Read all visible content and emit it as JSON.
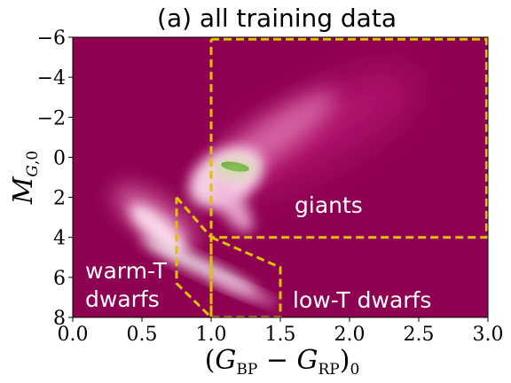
{
  "chart_data": {
    "type": "heatmap",
    "title": "(a) all training data",
    "xlabel": "(G_BP − G_RP)_0",
    "ylabel": "M_G,0",
    "xlim": [
      0.0,
      3.0
    ],
    "ylim": [
      8,
      -6
    ],
    "y_inverted": true,
    "x_ticks": [
      "0.0",
      "0.5",
      "1.0",
      "1.5",
      "2.0",
      "2.5",
      "3.0"
    ],
    "y_ticks": [
      "−6",
      "−4",
      "−2",
      "0",
      "2",
      "4",
      "6",
      "8"
    ],
    "x_tick_values": [
      0.0,
      0.5,
      1.0,
      1.5,
      2.0,
      2.5,
      3.0
    ],
    "y_tick_values": [
      -6,
      -4,
      -2,
      0,
      2,
      4,
      6,
      8
    ],
    "colormap": {
      "low": "#8e0152",
      "mid": "#f7f7f7",
      "high": "#4d9221"
    },
    "regions": [
      {
        "label": "giants",
        "polygon": [
          [
            1.0,
            -5.9
          ],
          [
            2.99,
            -5.9
          ],
          [
            2.99,
            4.0
          ],
          [
            1.0,
            4.0
          ],
          [
            1.0,
            -5.9
          ]
        ]
      },
      {
        "label": "low-T dwarfs",
        "polygon": [
          [
            1.0,
            4.0
          ],
          [
            1.5,
            5.5
          ],
          [
            1.5,
            8.0
          ],
          [
            1.0,
            8.0
          ],
          [
            1.0,
            4.0
          ]
        ]
      },
      {
        "label": "warm-T dwarfs",
        "polygon": [
          [
            0.75,
            2.0
          ],
          [
            1.0,
            4.0
          ],
          [
            1.0,
            8.0
          ],
          [
            0.75,
            6.3
          ],
          [
            0.75,
            2.0
          ]
        ]
      }
    ],
    "region_labels": {
      "giants": "giants",
      "low_t_dwarfs": "low-T dwarfs",
      "warm_t_line1": "warm-T",
      "warm_t_line2": "dwarfs"
    },
    "box_color": "#e0c000"
  }
}
